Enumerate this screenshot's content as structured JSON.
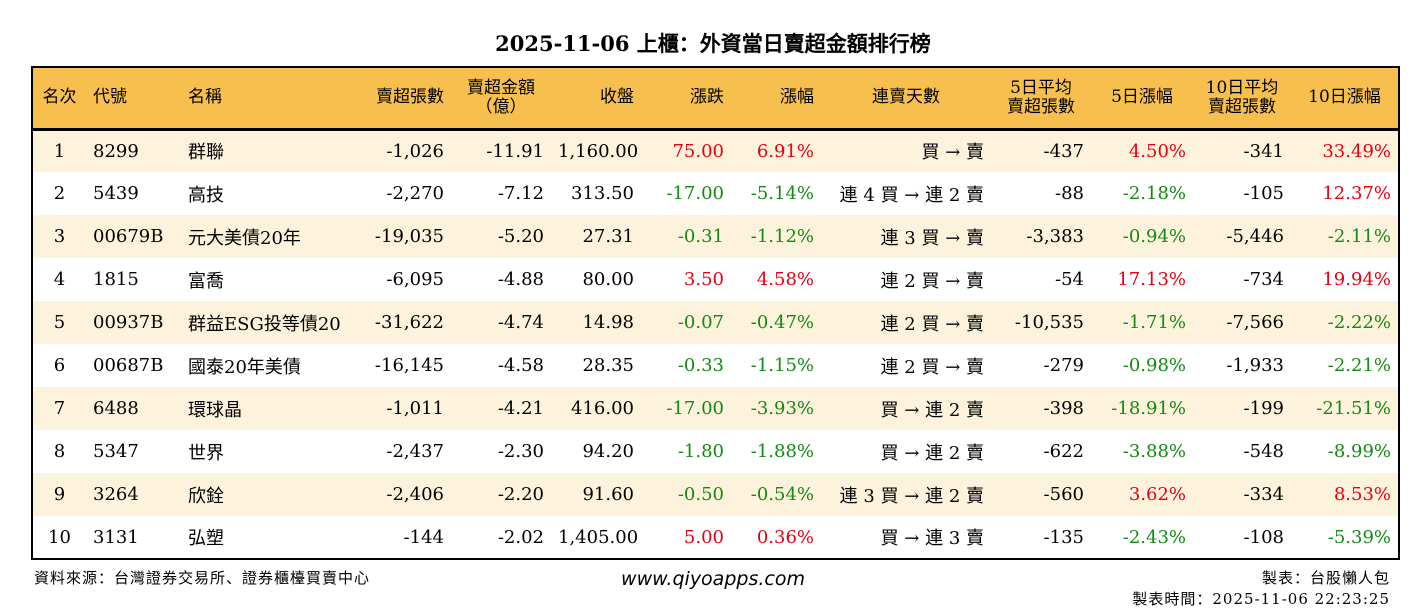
{
  "title": "2025-11-06 上櫃：外資當日賣超金額排行榜",
  "headers": [
    "名次",
    "代號",
    "名稱",
    "賣超張數",
    "賣超金額\n（億）",
    "收盤",
    "漲跌",
    "漲幅",
    "連賣天數",
    "5日平均\n賣超張數",
    "5日漲幅",
    "10日平均\n賣超張數",
    "10日漲幅"
  ],
  "colors": {
    "header_bg": "#f7bf4d",
    "row_alt_bg": "#fdf3dc",
    "up": "#e60012",
    "down": "#138a13"
  },
  "rows": [
    [
      "1",
      "8299",
      "群聯",
      "-1,026",
      "-11.91",
      "1,160.00",
      "75.00",
      "6.91%",
      "買 → 賣",
      "-437",
      "4.50%",
      "-341",
      "33.49%"
    ],
    [
      "2",
      "5439",
      "高技",
      "-2,270",
      "-7.12",
      "313.50",
      "-17.00",
      "-5.14%",
      "連 4 買 → 連 2 賣",
      "-88",
      "-2.18%",
      "-105",
      "12.37%"
    ],
    [
      "3",
      "00679B",
      "元大美債20年",
      "-19,035",
      "-5.20",
      "27.31",
      "-0.31",
      "-1.12%",
      "連 3 買 → 賣",
      "-3,383",
      "-0.94%",
      "-5,446",
      "-2.11%"
    ],
    [
      "4",
      "1815",
      "富喬",
      "-6,095",
      "-4.88",
      "80.00",
      "3.50",
      "4.58%",
      "連 2 買 → 賣",
      "-54",
      "17.13%",
      "-734",
      "19.94%"
    ],
    [
      "5",
      "00937B",
      "群益ESG投等債20",
      "-31,622",
      "-4.74",
      "14.98",
      "-0.07",
      "-0.47%",
      "連 2 買 → 賣",
      "-10,535",
      "-1.71%",
      "-7,566",
      "-2.22%"
    ],
    [
      "6",
      "00687B",
      "國泰20年美債",
      "-16,145",
      "-4.58",
      "28.35",
      "-0.33",
      "-1.15%",
      "連 2 買 → 賣",
      "-279",
      "-0.98%",
      "-1,933",
      "-2.21%"
    ],
    [
      "7",
      "6488",
      "環球晶",
      "-1,011",
      "-4.21",
      "416.00",
      "-17.00",
      "-3.93%",
      "買 → 連 2 賣",
      "-398",
      "-18.91%",
      "-199",
      "-21.51%"
    ],
    [
      "8",
      "5347",
      "世界",
      "-2,437",
      "-2.30",
      "94.20",
      "-1.80",
      "-1.88%",
      "買 → 連 2 賣",
      "-622",
      "-3.88%",
      "-548",
      "-8.99%"
    ],
    [
      "9",
      "3264",
      "欣銓",
      "-2,406",
      "-2.20",
      "91.60",
      "-0.50",
      "-0.54%",
      "連 3 買 → 連 2 賣",
      "-560",
      "3.62%",
      "-334",
      "8.53%"
    ],
    [
      "10",
      "3131",
      "弘塑",
      "-144",
      "-2.02",
      "1,405.00",
      "5.00",
      "0.36%",
      "買 → 連 3 賣",
      "-135",
      "-2.43%",
      "-108",
      "-5.39%"
    ]
  ],
  "footer": {
    "source": "資料來源：台灣證券交易所、證券櫃檯買賣中心",
    "site": "www.qiyoapps.com",
    "maker": "製表：台股懶人包",
    "time": "製表時間：2025-11-06 22:23:25"
  }
}
